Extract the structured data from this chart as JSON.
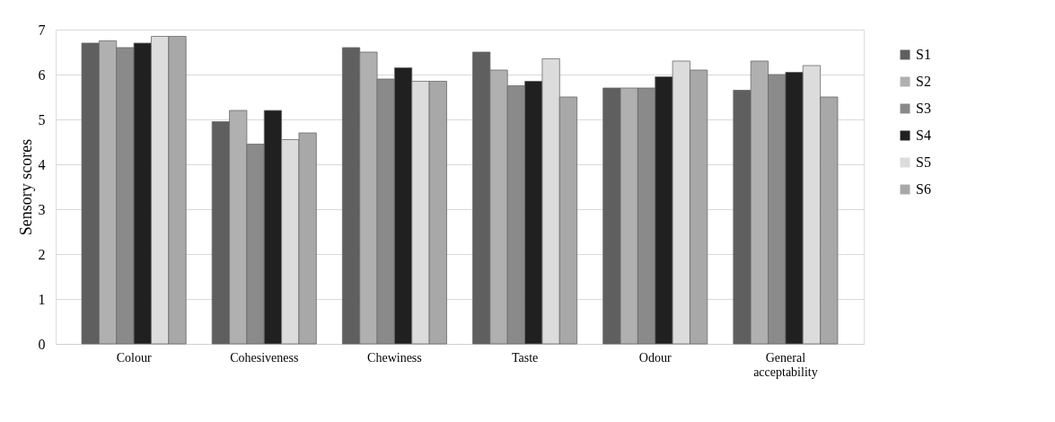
{
  "chart_data": {
    "type": "bar",
    "ylabel": "Sensory scores",
    "categories": [
      "Colour",
      "Cohesiveness",
      "Chewiness",
      "Taste",
      "Odour",
      "General acceptability"
    ],
    "series": [
      {
        "name": "S1",
        "color": "#5f5f5f",
        "values": [
          6.7,
          4.95,
          6.6,
          6.5,
          5.7,
          5.65
        ]
      },
      {
        "name": "S2",
        "color": "#b0b0b0",
        "values": [
          6.75,
          5.2,
          6.5,
          6.1,
          5.7,
          6.3
        ]
      },
      {
        "name": "S3",
        "color": "#8a8a8a",
        "values": [
          6.6,
          4.45,
          5.9,
          5.75,
          5.7,
          6.0
        ]
      },
      {
        "name": "S4",
        "color": "#202020",
        "values": [
          6.7,
          5.2,
          6.15,
          5.85,
          5.95,
          6.05
        ]
      },
      {
        "name": "S5",
        "color": "#dcdcdc",
        "values": [
          6.85,
          4.55,
          5.85,
          6.35,
          6.3,
          6.2
        ]
      },
      {
        "name": "S6",
        "color": "#a8a8a8",
        "values": [
          6.85,
          4.7,
          5.85,
          5.5,
          6.1,
          5.5
        ]
      }
    ],
    "ylim": [
      0,
      7
    ],
    "yticks": [
      0,
      1,
      2,
      3,
      4,
      5,
      6,
      7
    ],
    "grid": "y",
    "legend": "right"
  }
}
